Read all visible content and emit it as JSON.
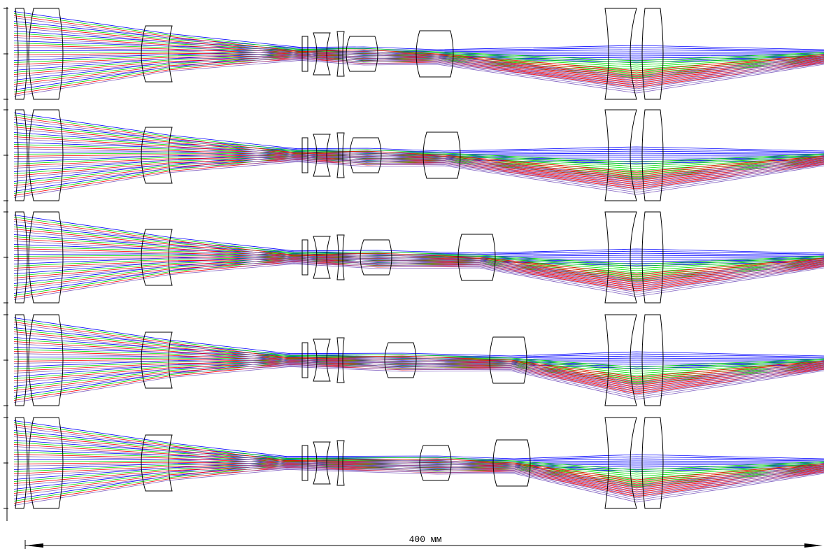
{
  "scale_bar": {
    "label": "400 мм"
  }
}
